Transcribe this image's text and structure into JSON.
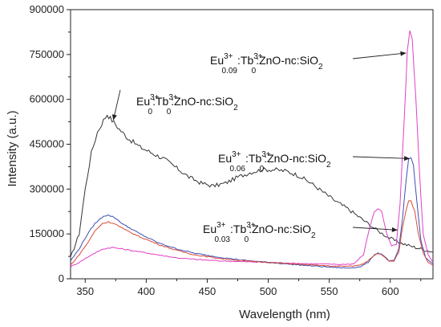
{
  "chart_data": {
    "type": "line",
    "xlabel": "Wavelength (nm)",
    "ylabel": "Intensity (a.u.)",
    "xlim": [
      338,
      635
    ],
    "ylim": [
      0,
      900000
    ],
    "x_ticks": [
      "350",
      "400",
      "450",
      "500",
      "550",
      "600"
    ],
    "y_ticks": [
      "0",
      "150000",
      "300000",
      "450000",
      "600000",
      "750000",
      "900000"
    ],
    "grid": false,
    "legend": "none",
    "series": [
      {
        "color": "#333333",
        "points": [
          [
            338,
            70000
          ],
          [
            345,
            150000
          ],
          [
            350,
            300000
          ],
          [
            355,
            420000
          ],
          [
            360,
            490000
          ],
          [
            365,
            530000
          ],
          [
            368,
            550000
          ],
          [
            372,
            530000
          ],
          [
            378,
            500000
          ],
          [
            385,
            470000
          ],
          [
            395,
            440000
          ],
          [
            405,
            420000
          ],
          [
            415,
            400000
          ],
          [
            425,
            370000
          ],
          [
            435,
            340000
          ],
          [
            445,
            320000
          ],
          [
            455,
            310000
          ],
          [
            465,
            320000
          ],
          [
            475,
            340000
          ],
          [
            485,
            355000
          ],
          [
            495,
            365000
          ],
          [
            505,
            365000
          ],
          [
            515,
            360000
          ],
          [
            525,
            345000
          ],
          [
            535,
            320000
          ],
          [
            545,
            290000
          ],
          [
            555,
            260000
          ],
          [
            565,
            235000
          ],
          [
            575,
            205000
          ],
          [
            585,
            175000
          ],
          [
            590,
            160000
          ],
          [
            598,
            140000
          ],
          [
            605,
            125000
          ],
          [
            612,
            115000
          ],
          [
            618,
            108000
          ],
          [
            625,
            100000
          ],
          [
            635,
            90000
          ]
        ]
      },
      {
        "color": "#e040c8",
        "points": [
          [
            338,
            40000
          ],
          [
            345,
            55000
          ],
          [
            355,
            80000
          ],
          [
            365,
            100000
          ],
          [
            372,
            105000
          ],
          [
            380,
            100000
          ],
          [
            395,
            90000
          ],
          [
            410,
            80000
          ],
          [
            425,
            70000
          ],
          [
            440,
            65000
          ],
          [
            460,
            60000
          ],
          [
            480,
            57000
          ],
          [
            500,
            55000
          ],
          [
            520,
            52000
          ],
          [
            540,
            50000
          ],
          [
            560,
            48000
          ],
          [
            570,
            50000
          ],
          [
            578,
            80000
          ],
          [
            583,
            170000
          ],
          [
            587,
            225000
          ],
          [
            590,
            235000
          ],
          [
            593,
            225000
          ],
          [
            597,
            150000
          ],
          [
            601,
            110000
          ],
          [
            605,
            115000
          ],
          [
            608,
            250000
          ],
          [
            611,
            500000
          ],
          [
            614,
            760000
          ],
          [
            616,
            830000
          ],
          [
            618,
            800000
          ],
          [
            621,
            600000
          ],
          [
            624,
            350000
          ],
          [
            627,
            150000
          ],
          [
            631,
            80000
          ],
          [
            635,
            55000
          ]
        ]
      },
      {
        "color": "#3c4fb0",
        "points": [
          [
            338,
            60000
          ],
          [
            345,
            100000
          ],
          [
            352,
            150000
          ],
          [
            358,
            185000
          ],
          [
            365,
            210000
          ],
          [
            369,
            213000
          ],
          [
            374,
            205000
          ],
          [
            382,
            180000
          ],
          [
            395,
            150000
          ],
          [
            410,
            120000
          ],
          [
            425,
            100000
          ],
          [
            440,
            85000
          ],
          [
            460,
            72000
          ],
          [
            480,
            62000
          ],
          [
            500,
            55000
          ],
          [
            520,
            48000
          ],
          [
            540,
            42000
          ],
          [
            555,
            38000
          ],
          [
            565,
            36000
          ],
          [
            575,
            40000
          ],
          [
            582,
            55000
          ],
          [
            587,
            80000
          ],
          [
            590,
            87000
          ],
          [
            594,
            80000
          ],
          [
            599,
            60000
          ],
          [
            603,
            60000
          ],
          [
            607,
            100000
          ],
          [
            610,
            200000
          ],
          [
            613,
            330000
          ],
          [
            615,
            400000
          ],
          [
            617,
            405000
          ],
          [
            619,
            380000
          ],
          [
            622,
            250000
          ],
          [
            625,
            130000
          ],
          [
            629,
            70000
          ],
          [
            635,
            50000
          ]
        ]
      },
      {
        "color": "#d84a3a",
        "points": [
          [
            338,
            45000
          ],
          [
            345,
            80000
          ],
          [
            352,
            120000
          ],
          [
            358,
            160000
          ],
          [
            364,
            185000
          ],
          [
            369,
            190000
          ],
          [
            374,
            185000
          ],
          [
            382,
            165000
          ],
          [
            395,
            140000
          ],
          [
            410,
            115000
          ],
          [
            425,
            95000
          ],
          [
            440,
            80000
          ],
          [
            460,
            68000
          ],
          [
            480,
            60000
          ],
          [
            500,
            55000
          ],
          [
            520,
            50000
          ],
          [
            540,
            45000
          ],
          [
            555,
            42000
          ],
          [
            565,
            42000
          ],
          [
            575,
            45000
          ],
          [
            582,
            60000
          ],
          [
            587,
            80000
          ],
          [
            590,
            85000
          ],
          [
            594,
            78000
          ],
          [
            599,
            60000
          ],
          [
            603,
            60000
          ],
          [
            607,
            90000
          ],
          [
            610,
            170000
          ],
          [
            613,
            230000
          ],
          [
            615,
            262000
          ],
          [
            617,
            260000
          ],
          [
            620,
            225000
          ],
          [
            623,
            150000
          ],
          [
            627,
            85000
          ],
          [
            631,
            55000
          ],
          [
            635,
            45000
          ]
        ]
      }
    ],
    "annotations": [
      {
        "main": "Eu",
        "sub": "0.09",
        "sup": "3+",
        "rest1": ":Tb",
        "sub2": "0",
        "sup2": "3+",
        "rest2": ":ZnO-nc:SiO",
        "sub3": "2",
        "target": [
          613,
          755000
        ]
      },
      {
        "main": "Eu",
        "sub": "0",
        "sup": "3+",
        "rest1": ":Tb",
        "sub2": "0",
        "sup2": "3+",
        "rest2": ":ZnO-nc:SiO",
        "sub3": "2",
        "target": [
          373,
          530000
        ]
      },
      {
        "main": "Eu",
        "sub": "0.06",
        "sup": "3+",
        "rest1": ":Tb",
        "sub2": "0",
        "sup2": "3+",
        "rest2": ":ZnO-nc:SiO",
        "sub3": "2",
        "target": [
          616,
          402000
        ]
      },
      {
        "main": "Eu",
        "sub": "0.03",
        "sup": "3+",
        "rest1": ":Tb",
        "sub2": "0",
        "sup2": "3+",
        "rest2": ":ZnO-nc:SiO",
        "sub3": "2",
        "target": [
          606,
          163000
        ]
      }
    ]
  }
}
